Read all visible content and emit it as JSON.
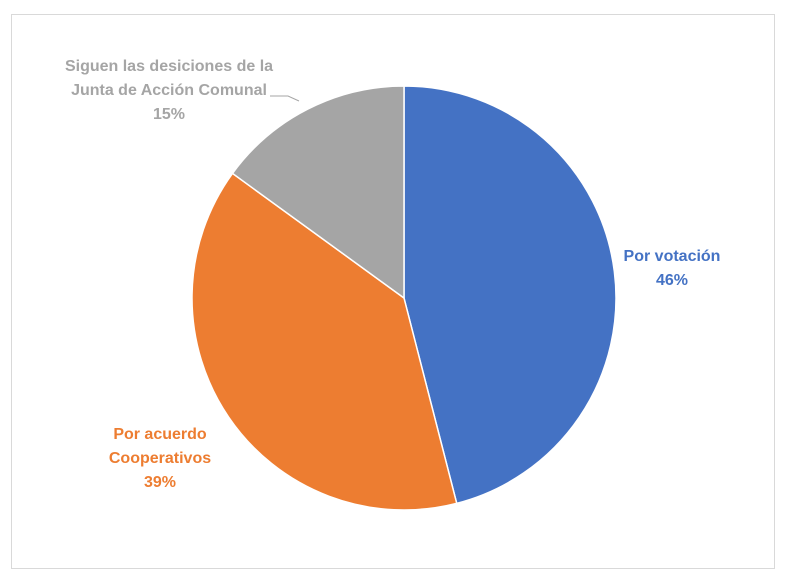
{
  "chart_data": {
    "type": "pie",
    "title": "",
    "slices": [
      {
        "label_lines": [
          "Por votación",
          "46%"
        ],
        "value": 46,
        "color": "#4472C4"
      },
      {
        "label_lines": [
          "Por acuerdo",
          "Cooperativos",
          "39%"
        ],
        "value": 39,
        "color": "#ED7D31"
      },
      {
        "label_lines": [
          "Siguen las desiciones de la",
          "Junta de Acción Comunal",
          "15%"
        ],
        "value": 15,
        "color": "#A5A5A5"
      }
    ],
    "start_angle": "12 o'clock",
    "direction": "clockwise",
    "legend": "none",
    "label_color_matches_slice": true
  }
}
